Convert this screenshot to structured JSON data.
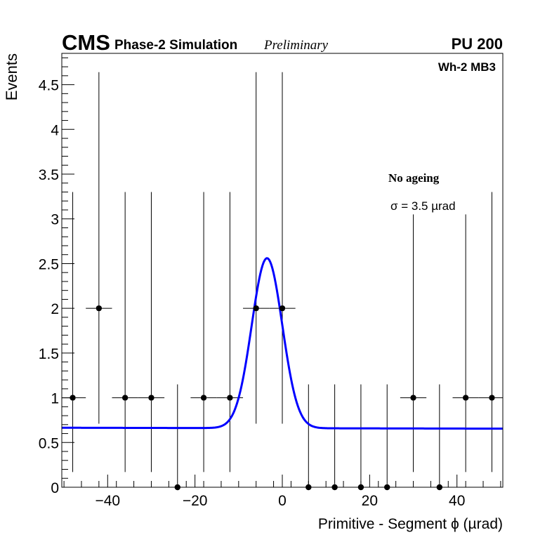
{
  "header": {
    "experiment": "CMS",
    "simulation": "Phase-2 Simulation",
    "status": "Preliminary",
    "pileup": "PU 200"
  },
  "chart_data": {
    "type": "scatter",
    "xlabel": "Primitive - Segment ϕ (µrad)",
    "ylabel": "Events",
    "xlim": [
      -50.5,
      50.5
    ],
    "ylim": [
      0,
      4.85
    ],
    "x_ticks": [
      -40,
      -20,
      0,
      20,
      40
    ],
    "x_tick_labels": [
      "−40",
      "−20",
      "0",
      "20",
      "40"
    ],
    "y_ticks": [
      0,
      0.5,
      1,
      1.5,
      2,
      2.5,
      3,
      3.5,
      4,
      4.5
    ],
    "y_tick_labels": [
      "0",
      "0.5",
      "1",
      "1.5",
      "2",
      "2.5",
      "3",
      "3.5",
      "4",
      "4.5"
    ],
    "grid": false,
    "annotations": {
      "region": "Wh-2 MB3",
      "condition": "No ageing",
      "resolution": "σ = 3.5  µrad"
    },
    "series": [
      {
        "kind": "points",
        "color": "#000000",
        "bin_halfwidth": 3,
        "points": [
          {
            "x": -48,
            "y": 1,
            "lo": 0.83,
            "hi": 2.3
          },
          {
            "x": -42,
            "y": 2,
            "lo": 1.29,
            "hi": 2.64
          },
          {
            "x": -36,
            "y": 1,
            "lo": 0.83,
            "hi": 2.3
          },
          {
            "x": -30,
            "y": 1,
            "lo": 0.83,
            "hi": 2.3
          },
          {
            "x": -24,
            "y": 0,
            "lo": 0,
            "hi": 1.15
          },
          {
            "x": -18,
            "y": 1,
            "lo": 0.83,
            "hi": 2.3
          },
          {
            "x": -12,
            "y": 1,
            "lo": 0.83,
            "hi": 2.3
          },
          {
            "x": -6,
            "y": 2,
            "lo": 1.29,
            "hi": 2.64
          },
          {
            "x": 0,
            "y": 2,
            "lo": 1.29,
            "hi": 2.64
          },
          {
            "x": 6,
            "y": 0,
            "lo": 0,
            "hi": 1.15
          },
          {
            "x": 12,
            "y": 0,
            "lo": 0,
            "hi": 1.15
          },
          {
            "x": 18,
            "y": 0,
            "lo": 0,
            "hi": 1.15
          },
          {
            "x": 24,
            "y": 0,
            "lo": 0,
            "hi": 1.15
          },
          {
            "x": 30,
            "y": 1,
            "lo": 0.83,
            "hi": 2.05
          },
          {
            "x": 36,
            "y": 0,
            "lo": 0,
            "hi": 1.15
          },
          {
            "x": 42,
            "y": 1,
            "lo": 0.83,
            "hi": 2.05
          },
          {
            "x": 48,
            "y": 1,
            "lo": 0.83,
            "hi": 2.3
          }
        ]
      },
      {
        "kind": "fit",
        "function": "gaussian_plus_linear",
        "color": "#0000ff",
        "amplitude": 1.9,
        "mean": -3.5,
        "sigma": 3.5,
        "baseline_at_zero": 0.66,
        "baseline_slope": -0.0001
      }
    ]
  }
}
